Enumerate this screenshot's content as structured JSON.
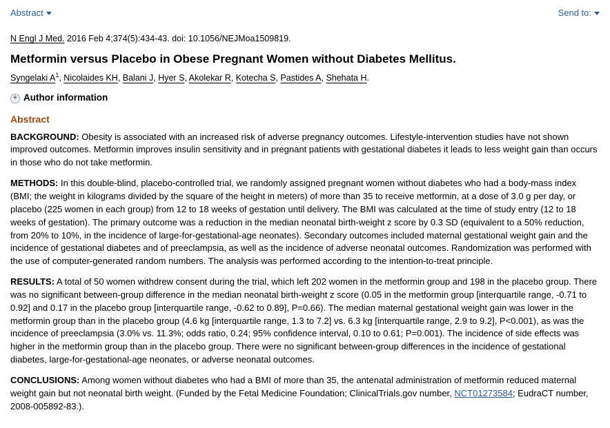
{
  "topbar": {
    "abstract_label": "Abstract",
    "sendto_label": "Send to:"
  },
  "citation": {
    "journal": "N Engl J Med.",
    "details": " 2016 Feb 4;374(5):434-43. doi: 10.1056/NEJMoa1509819."
  },
  "title": "Metformin versus Placebo in Obese Pregnant Women without Diabetes Mellitus.",
  "authors": {
    "list": [
      "Syngelaki A",
      "Nicolaides KH",
      "Balani J",
      "Hyer S",
      "Akolekar R",
      "Kotecha S",
      "Pastides A",
      "Shehata H"
    ],
    "first_sup": "1"
  },
  "author_info_label": "Author information",
  "abstract_heading": "Abstract",
  "sections": {
    "background": {
      "label": "BACKGROUND:",
      "text": " Obesity is associated with an increased risk of adverse pregnancy outcomes. Lifestyle-intervention studies have not shown improved outcomes. Metformin improves insulin sensitivity and in pregnant patients with gestational diabetes it leads to less weight gain than occurs in those who do not take metformin."
    },
    "methods": {
      "label": "METHODS:",
      "text": " In this double-blind, placebo-controlled trial, we randomly assigned pregnant women without diabetes who had a body-mass index (BMI; the weight in kilograms divided by the square of the height in meters) of more than 35 to receive metformin, at a dose of 3.0 g per day, or placebo (225 women in each group) from 12 to 18 weeks of gestation until delivery. The BMI was calculated at the time of study entry (12 to 18 weeks of gestation). The primary outcome was a reduction in the median neonatal birth-weight z score by 0.3 SD (equivalent to a 50% reduction, from 20% to 10%, in the incidence of large-for-gestational-age neonates). Secondary outcomes included maternal gestational weight gain and the incidence of gestational diabetes and of preeclampsia, as well as the incidence of adverse neonatal outcomes. Randomization was performed with the use of computer-generated random numbers. The analysis was performed according to the intention-to-treat principle."
    },
    "results": {
      "label": "RESULTS:",
      "text": " A total of 50 women withdrew consent during the trial, which left 202 women in the metformin group and 198 in the placebo group. There was no significant between-group difference in the median neonatal birth-weight z score (0.05 in the metformin group [interquartile range, -0.71 to 0.92] and 0.17 in the placebo group [interquartile range, -0.62 to 0.89], P=0.66). The median maternal gestational weight gain was lower in the metformin group than in the placebo group (4.6 kg [interquartile range, 1.3 to 7.2] vs. 6.3 kg [interquartile range, 2.9 to 9.2], P<0.001), as was the incidence of preeclampsia (3.0% vs. 11.3%; odds ratio, 0.24; 95% confidence interval, 0.10 to 0.61; P=0.001). The incidence of side effects was higher in the metformin group than in the placebo group. There were no significant between-group differences in the incidence of gestational diabetes, large-for-gestational-age neonates, or adverse neonatal outcomes."
    },
    "conclusions": {
      "label": "CONCLUSIONS:",
      "text_before": " Among women without diabetes who had a BMI of more than 35, the antenatal administration of metformin reduced maternal weight gain but not neonatal birth weight. (Funded by the Fetal Medicine Foundation; ClinicalTrials.gov number, ",
      "nct": "NCT01273584",
      "text_after": "; EudraCT number, 2008-005892-83.)."
    }
  }
}
